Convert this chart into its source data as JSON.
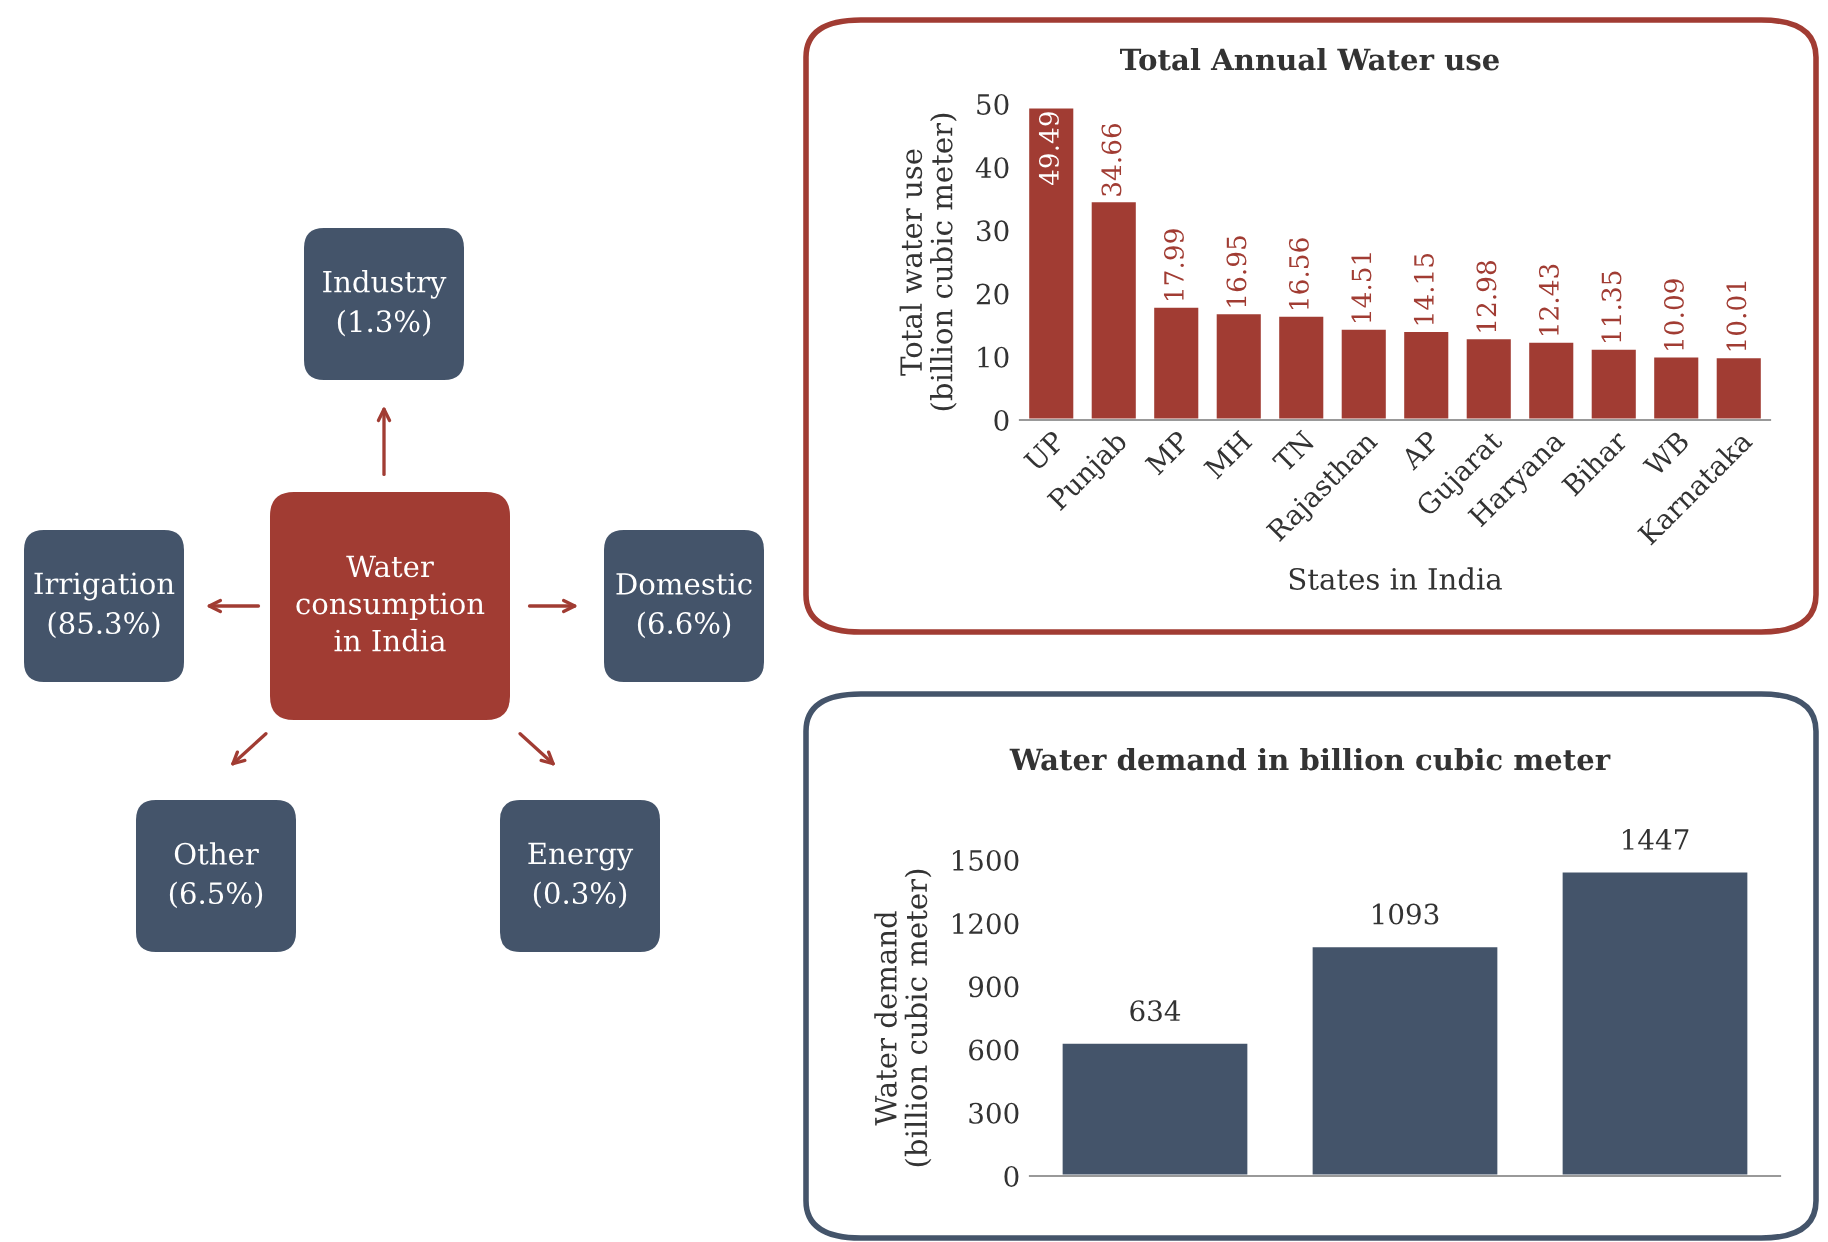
{
  "chart_data": [
    {
      "type": "other",
      "title": "Water\nconsumption\nin India",
      "categories": [
        "Industry",
        "Domestic",
        "Energy",
        "Other",
        "Irrigation"
      ],
      "values": [
        1.3,
        6.6,
        0.3,
        6.5,
        85.3
      ],
      "value_labels": [
        "(1.3%)",
        "(6.6%)",
        "(0.3%)",
        "(6.5%)",
        "(85.3%)"
      ],
      "color": "#a13c33",
      "colors": [
        "#44546a",
        "#44546a",
        "#44546a",
        "#44546a",
        "#44546a"
      ]
    },
    {
      "type": "bar",
      "title": "Total Annual Water use",
      "xlabel": "States in India",
      "ylabel": "Total water use\n(billion cubic meter)",
      "categories": [
        "UP",
        "Punjab",
        "MP",
        "MH",
        "TN",
        "Rajasthan",
        "AP",
        "Gujarat",
        "Haryana",
        "Bihar",
        "WB",
        "Karnataka"
      ],
      "values": [
        49.49,
        34.66,
        17.99,
        16.95,
        16.56,
        14.51,
        14.15,
        12.98,
        12.43,
        11.35,
        10.09,
        10.01
      ],
      "color": "#a13c33",
      "ylim": [
        0,
        50
      ],
      "yticks": [
        0,
        10,
        20,
        30,
        40,
        50
      ],
      "data_labels": true,
      "grid": false,
      "legend": false
    },
    {
      "type": "bar",
      "title": "Water demand in billion cubic meter",
      "ylabel": "Water demand\n(billion cubic meter)",
      "categories": [
        null,
        null,
        null
      ],
      "values": [
        634,
        1093,
        1447
      ],
      "color": "#44546a",
      "ylim": [
        0,
        1500
      ],
      "yticks": [
        0,
        300,
        600,
        900,
        1200,
        1500
      ],
      "data_labels": true,
      "grid": false,
      "legend": false
    }
  ]
}
